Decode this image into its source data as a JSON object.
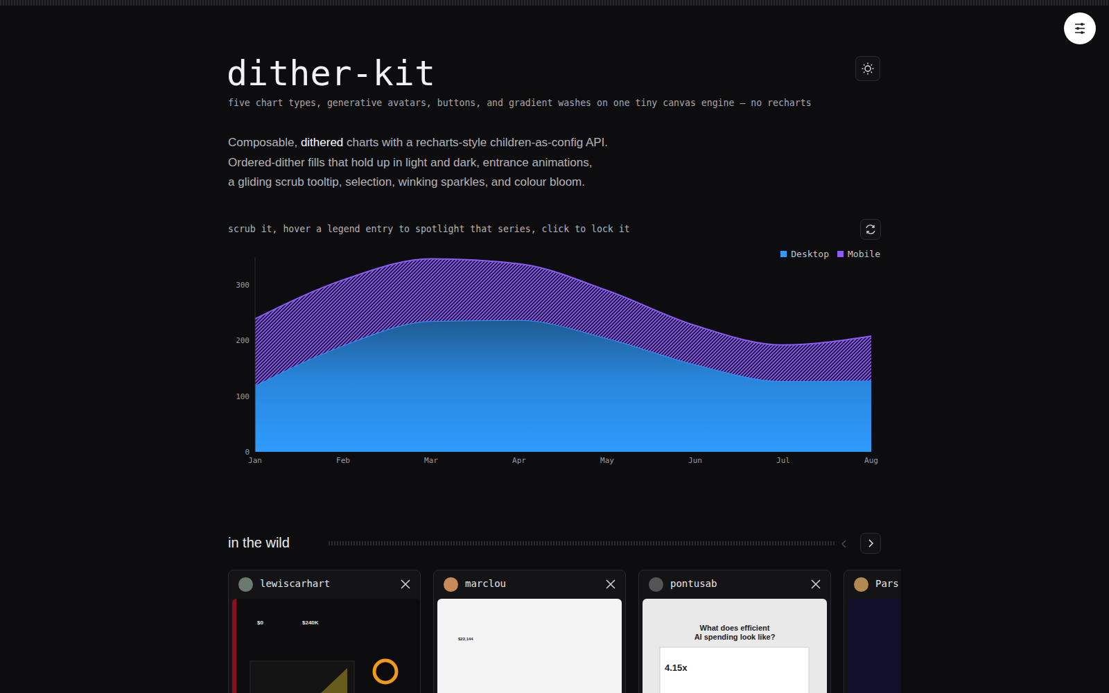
{
  "header": {
    "title": "dither-kit",
    "subtitle": "five chart types, generative avatars, buttons, and gradient washes on one tiny canvas engine — no recharts"
  },
  "intro": {
    "lines": [
      "Composable, dithered charts with a recharts-style children-as-config API.",
      "Ordered-dither fills that hold up in light and dark, entrance animations,",
      "a gliding scrub tooltip, selection, winking sparkles, and colour bloom."
    ],
    "highlight": "dithered"
  },
  "chart_hint": "scrub it, hover a legend entry to spotlight that series, click to lock it",
  "chart_data": {
    "type": "area",
    "stacked": true,
    "categories": [
      "Jan",
      "Feb",
      "Mar",
      "Apr",
      "May",
      "Jun",
      "Jul",
      "Aug"
    ],
    "series": [
      {
        "name": "Desktop",
        "color": "#2e9bff",
        "values": [
          119,
          191,
          235,
          237,
          204,
          157,
          127,
          128
        ]
      },
      {
        "name": "Mobile",
        "color": "#8b5cf6",
        "values": [
          120,
          118,
          112,
          101,
          86,
          70,
          65,
          80
        ]
      }
    ],
    "ylim": [
      0,
      350
    ],
    "yticks": [
      0,
      100,
      200,
      300
    ],
    "legend": "top-right",
    "grid": false
  },
  "section": {
    "title": "in the wild",
    "cards": [
      {
        "user": "lewiscarhart",
        "texts": [
          "$0",
          "$240K"
        ]
      },
      {
        "user": "marclou",
        "texts": [
          "$22,144"
        ]
      },
      {
        "user": "pontusab",
        "texts": [
          "What does efficient",
          "AI spending look like?",
          "4.15x"
        ]
      },
      {
        "user": "Pars"
      }
    ]
  }
}
